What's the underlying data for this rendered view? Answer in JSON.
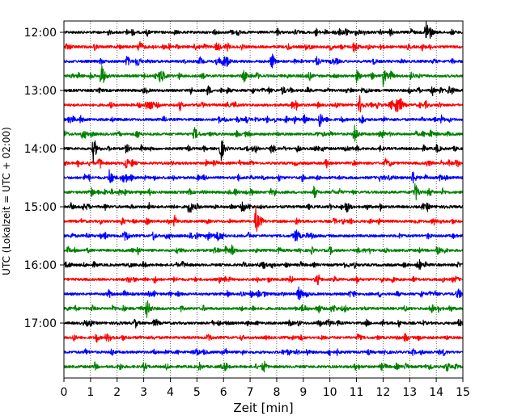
{
  "chart_data": {
    "type": "line",
    "title": "",
    "xlabel": "Zeit  [min]",
    "ylabel": "UTC (Lokalzeit = UTC + 02:00)",
    "xlim": [
      0,
      15
    ],
    "x_ticks": [
      0,
      1,
      2,
      3,
      4,
      5,
      6,
      7,
      8,
      9,
      10,
      11,
      12,
      13,
      14,
      15
    ],
    "y_tick_labels": [
      "12:00",
      "13:00",
      "14:00",
      "15:00",
      "16:00",
      "17:00"
    ],
    "grid": "vertical dotted",
    "trace_interval_minutes": 15,
    "trace_colors": [
      "#000000",
      "#ff0000",
      "#0000ff",
      "#008000"
    ],
    "traces": [
      {
        "start": "11:45",
        "color": "#000000",
        "events": [
          [
            13.6,
            1.0
          ]
        ]
      },
      {
        "start": "12:00",
        "color": "#ff0000",
        "events": [
          [
            2.8,
            0.6
          ],
          [
            10.9,
            0.5
          ]
        ]
      },
      {
        "start": "12:15",
        "color": "#0000ff",
        "events": [
          [
            6.0,
            0.45
          ],
          [
            9.5,
            0.35
          ]
        ]
      },
      {
        "start": "12:30",
        "color": "#008000",
        "events": [
          [
            1.4,
            0.8
          ],
          [
            3.6,
            0.5
          ],
          [
            12.0,
            0.6
          ],
          [
            11.0,
            0.4
          ]
        ]
      },
      {
        "start": "12:45",
        "color": "#000000",
        "events": [
          [
            8.2,
            0.3
          ]
        ]
      },
      {
        "start": "13:00",
        "color": "#ff0000",
        "events": [
          [
            11.1,
            0.7
          ],
          [
            12.5,
            0.9
          ],
          [
            3.2,
            0.35
          ]
        ]
      },
      {
        "start": "13:15",
        "color": "#0000ff",
        "events": [
          [
            9.6,
            0.6
          ]
        ]
      },
      {
        "start": "13:30",
        "color": "#008000",
        "events": [
          [
            10.9,
            0.7
          ],
          [
            4.9,
            0.5
          ]
        ]
      },
      {
        "start": "13:45",
        "color": "#000000",
        "events": [
          [
            1.1,
            0.9
          ],
          [
            5.9,
            0.6
          ],
          [
            14.0,
            0.3
          ]
        ]
      },
      {
        "start": "14:00",
        "color": "#ff0000",
        "events": [
          [
            2.3,
            0.3
          ]
        ]
      },
      {
        "start": "14:15",
        "color": "#0000ff",
        "events": [
          [
            1.7,
            0.55
          ],
          [
            13.1,
            0.5
          ]
        ]
      },
      {
        "start": "14:30",
        "color": "#008000",
        "events": [
          [
            13.2,
            0.65
          ]
        ]
      },
      {
        "start": "14:45",
        "color": "#000000",
        "events": [
          [
            4.7,
            0.5
          ],
          [
            10.6,
            0.5
          ]
        ]
      },
      {
        "start": "15:00",
        "color": "#ff0000",
        "events": [
          [
            7.2,
            1.0
          ]
        ]
      },
      {
        "start": "15:15",
        "color": "#0000ff",
        "events": [
          [
            8.7,
            0.6
          ],
          [
            5.4,
            0.35
          ]
        ]
      },
      {
        "start": "15:30",
        "color": "#008000",
        "events": [
          [
            6.3,
            0.4
          ]
        ]
      },
      {
        "start": "15:45",
        "color": "#000000",
        "events": []
      },
      {
        "start": "16:00",
        "color": "#ff0000",
        "events": []
      },
      {
        "start": "16:15",
        "color": "#0000ff",
        "events": [
          [
            8.8,
            0.7
          ]
        ]
      },
      {
        "start": "16:30",
        "color": "#008000",
        "events": [
          [
            3.1,
            0.75
          ]
        ]
      },
      {
        "start": "16:45",
        "color": "#000000",
        "events": []
      },
      {
        "start": "17:00",
        "color": "#ff0000",
        "events": []
      },
      {
        "start": "17:15",
        "color": "#0000ff",
        "events": []
      },
      {
        "start": "17:30",
        "color": "#008000",
        "events": []
      }
    ]
  }
}
